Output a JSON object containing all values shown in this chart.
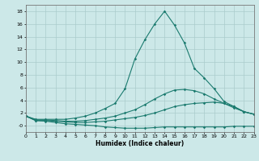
{
  "x": [
    0,
    1,
    2,
    3,
    4,
    5,
    6,
    7,
    8,
    9,
    10,
    11,
    12,
    13,
    14,
    15,
    16,
    17,
    18,
    19,
    20,
    21,
    22,
    23
  ],
  "line1": [
    1.5,
    0.8,
    0.7,
    0.5,
    0.3,
    0.2,
    0.1,
    0.0,
    -0.2,
    -0.3,
    -0.4,
    -0.4,
    -0.4,
    -0.3,
    -0.2,
    -0.2,
    -0.2,
    -0.2,
    -0.2,
    -0.2,
    -0.2,
    -0.1,
    -0.1,
    -0.1
  ],
  "line2": [
    1.5,
    0.8,
    0.8,
    0.7,
    0.6,
    0.5,
    0.5,
    0.6,
    0.7,
    0.9,
    1.1,
    1.3,
    1.6,
    2.0,
    2.5,
    3.0,
    3.3,
    3.5,
    3.6,
    3.7,
    3.5,
    3.0,
    2.2,
    1.8
  ],
  "line3": [
    1.5,
    0.9,
    0.9,
    0.8,
    0.7,
    0.7,
    0.8,
    1.0,
    1.2,
    1.5,
    2.0,
    2.5,
    3.3,
    4.2,
    5.0,
    5.6,
    5.7,
    5.5,
    5.0,
    4.2,
    3.5,
    2.8,
    2.2,
    1.8
  ],
  "line4": [
    1.5,
    1.0,
    1.0,
    1.0,
    1.0,
    1.2,
    1.5,
    2.0,
    2.7,
    3.5,
    5.8,
    10.5,
    13.5,
    16.0,
    18.0,
    15.8,
    13.0,
    9.0,
    7.5,
    5.8,
    3.8,
    3.0,
    2.2,
    1.8
  ],
  "line_color": "#1a7a6e",
  "bg_color": "#cce8e8",
  "grid_color": "#aacccc",
  "xlabel": "Humidex (Indice chaleur)",
  "ylim": [
    -1,
    19
  ],
  "xlim": [
    0,
    23
  ],
  "yticks": [
    0,
    2,
    4,
    6,
    8,
    10,
    12,
    14,
    16,
    18
  ],
  "ytick_labels": [
    "-0",
    "2",
    "4",
    "6",
    "8",
    "10",
    "12",
    "14",
    "16",
    "18"
  ],
  "xticks": [
    0,
    1,
    2,
    3,
    4,
    5,
    6,
    7,
    8,
    9,
    10,
    11,
    12,
    13,
    14,
    15,
    16,
    17,
    18,
    19,
    20,
    21,
    22,
    23
  ]
}
